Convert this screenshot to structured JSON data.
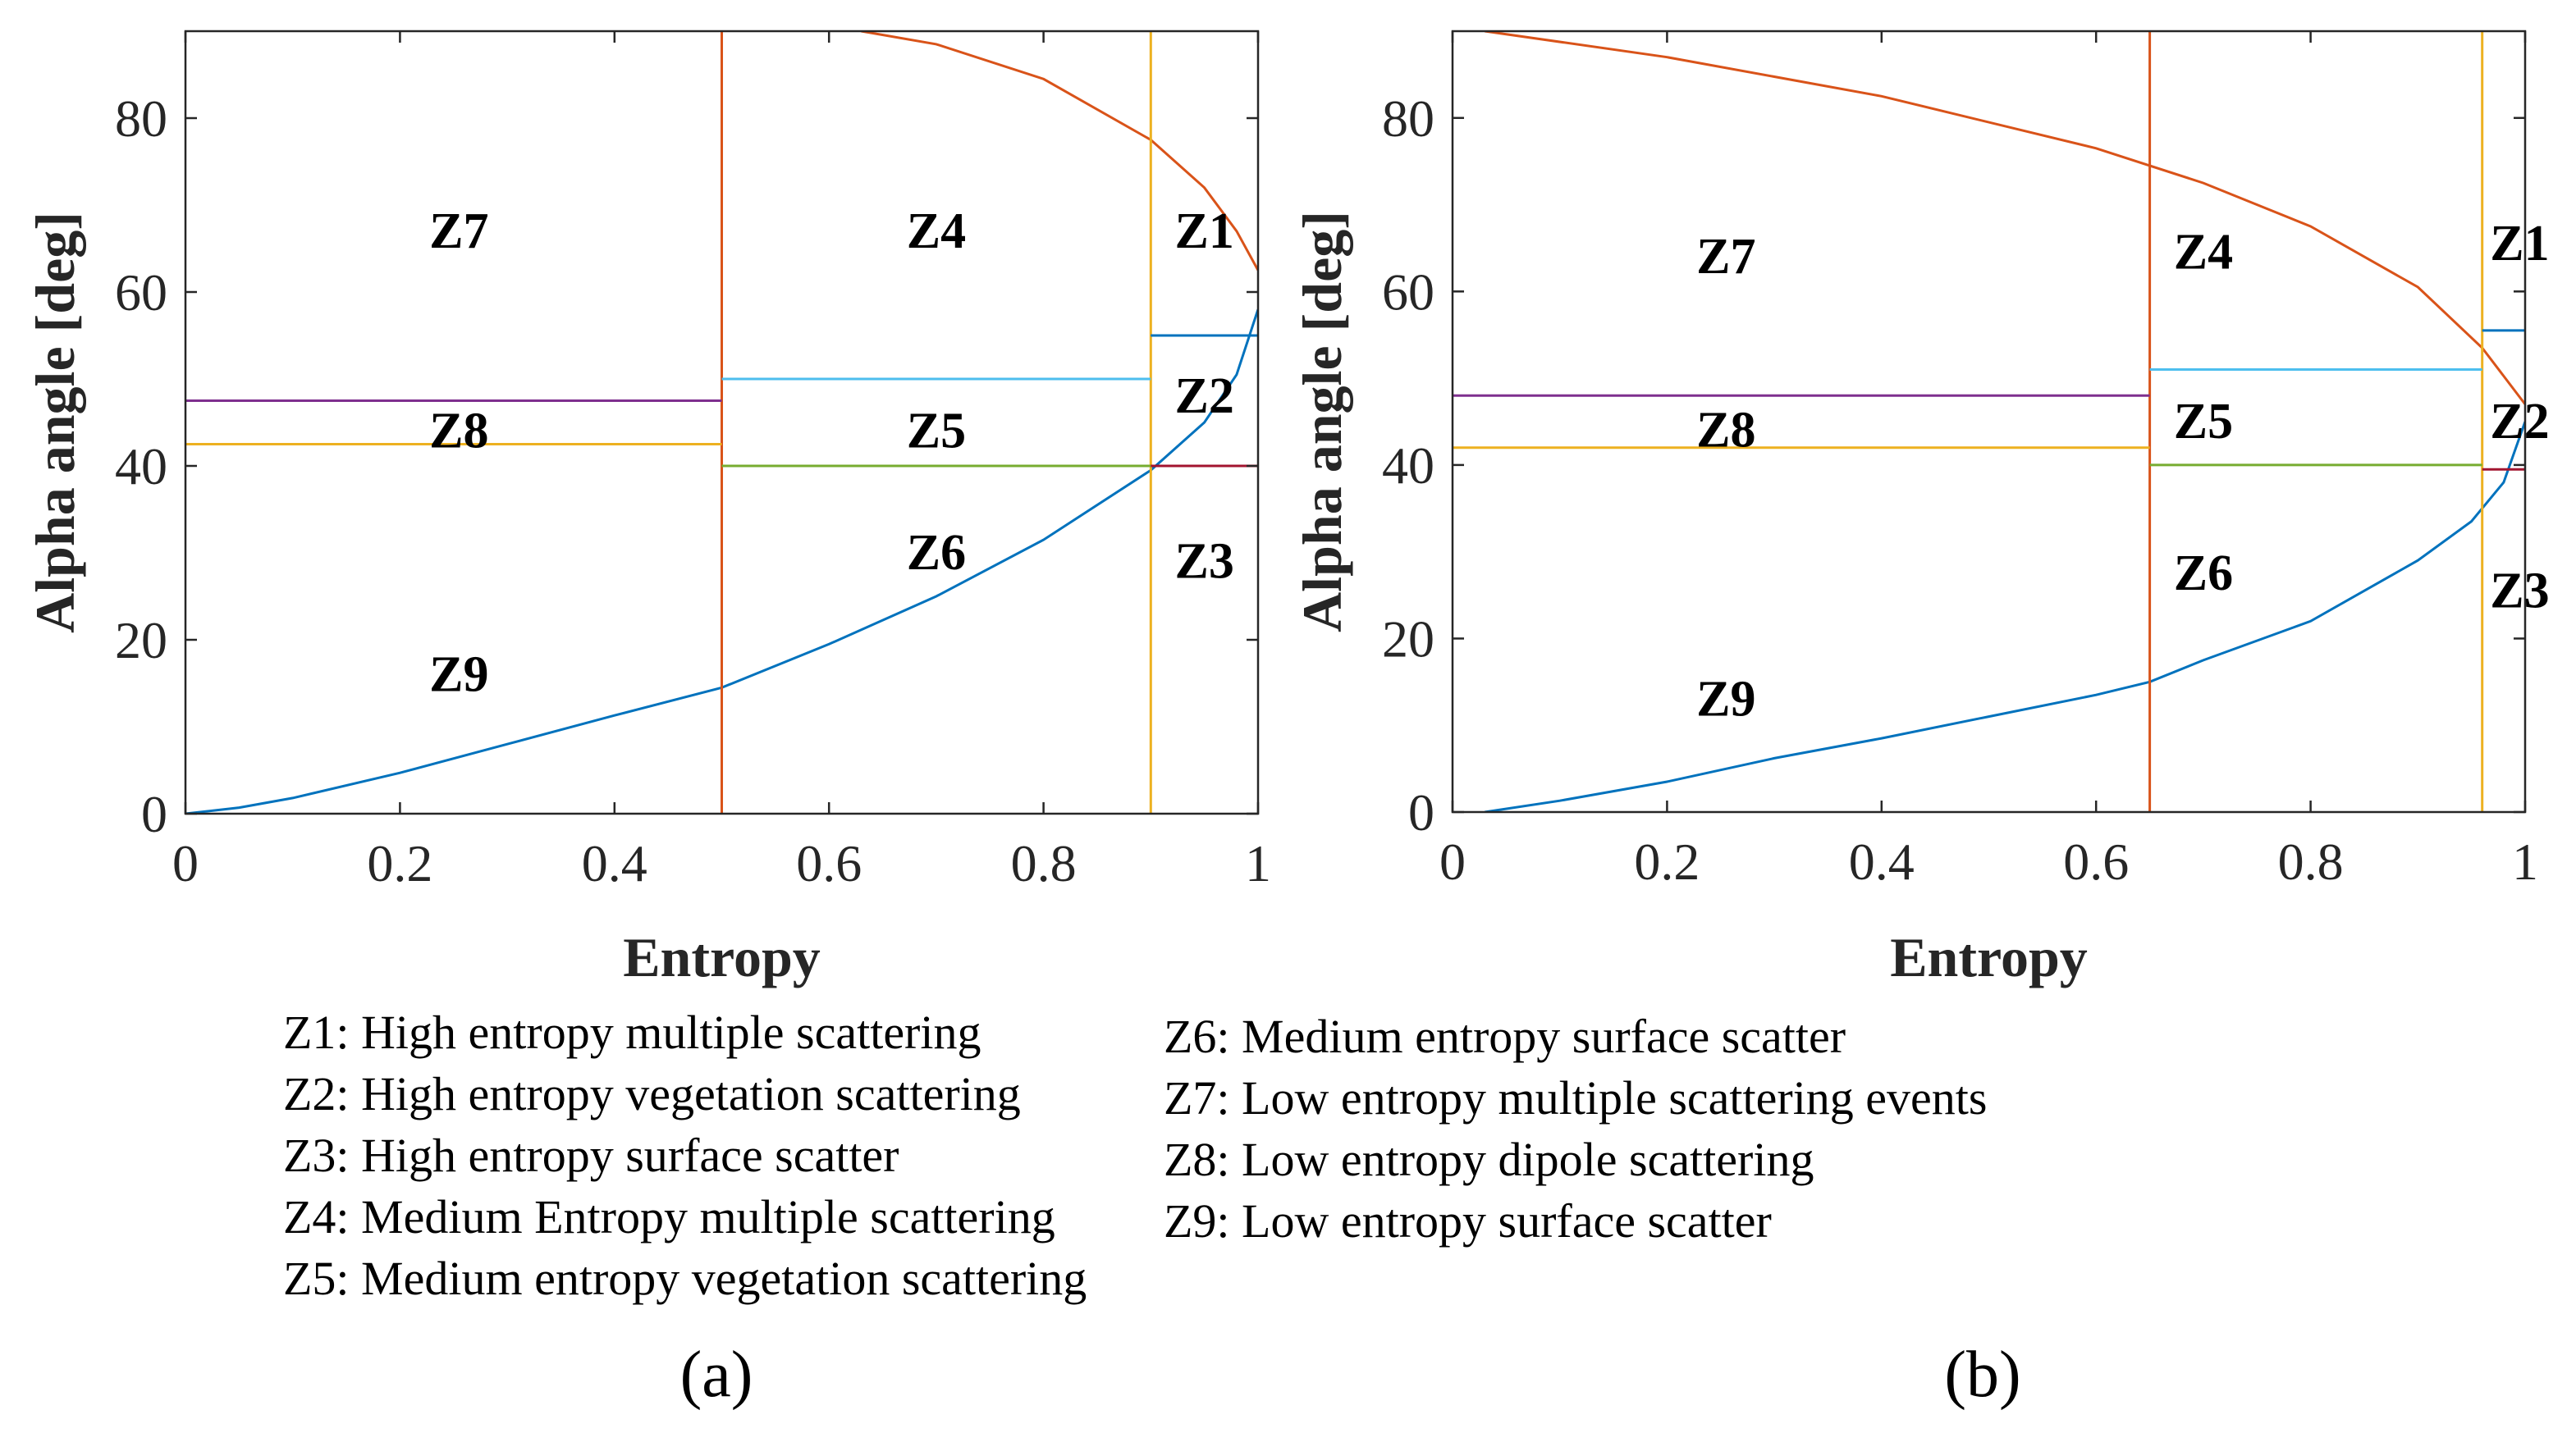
{
  "chart_data": [
    {
      "type": "line",
      "panel": "(a)",
      "xlabel": "Entropy",
      "ylabel": "Alpha angle [deg]",
      "xlim": [
        0,
        1
      ],
      "ylim": [
        0,
        90
      ],
      "xticks": [
        0,
        0.2,
        0.4,
        0.6,
        0.8,
        1
      ],
      "xtick_labels": [
        "0",
        "0.2",
        "0.4",
        "0.6",
        "0.8",
        "1"
      ],
      "yticks": [
        0,
        20,
        40,
        60,
        80
      ],
      "ytick_labels": [
        "0",
        "20",
        "40",
        "60",
        "80"
      ],
      "series": [
        {
          "name": "upper feasible boundary",
          "color": "#d95319",
          "x": [
            0.63,
            0.7,
            0.8,
            0.9,
            0.95,
            0.98,
            1.0
          ],
          "y": [
            90,
            88.5,
            84.5,
            77.5,
            72,
            67,
            62.5
          ]
        },
        {
          "name": "lower feasible boundary",
          "color": "#0072bd",
          "x": [
            0,
            0.05,
            0.1,
            0.2,
            0.3,
            0.4,
            0.5,
            0.6,
            0.7,
            0.8,
            0.9,
            0.95,
            0.98,
            1.0
          ],
          "y": [
            0,
            0.7,
            1.8,
            4.7,
            8,
            11.3,
            14.5,
            19.5,
            25,
            31.5,
            39.5,
            45,
            50.5,
            58
          ]
        },
        {
          "name": "H = 0.5",
          "color": "#d95319",
          "x": [
            0.5,
            0.5
          ],
          "y": [
            0,
            90
          ]
        },
        {
          "name": "H = 0.9",
          "color": "#edb120",
          "x": [
            0.9,
            0.9
          ],
          "y": [
            0,
            90
          ]
        },
        {
          "name": "alpha 47.5 (Z7/Z8)",
          "color": "#7e2f8e",
          "x": [
            0,
            0.5
          ],
          "y": [
            47.5,
            47.5
          ]
        },
        {
          "name": "alpha 42.5 (Z8/Z9)",
          "color": "#edb120",
          "x": [
            0,
            0.5
          ],
          "y": [
            42.5,
            42.5
          ]
        },
        {
          "name": "alpha 50 (Z4/Z5)",
          "color": "#4dbeee",
          "x": [
            0.5,
            0.9
          ],
          "y": [
            50,
            50
          ]
        },
        {
          "name": "alpha 40 (Z5/Z6)",
          "color": "#77ac30",
          "x": [
            0.5,
            0.9
          ],
          "y": [
            40,
            40
          ]
        },
        {
          "name": "alpha 55 (Z1/Z2)",
          "color": "#0072bd",
          "x": [
            0.9,
            1.0
          ],
          "y": [
            55,
            55
          ]
        },
        {
          "name": "alpha 40 (Z2/Z3)",
          "color": "#a2142f",
          "x": [
            0.9,
            1.0
          ],
          "y": [
            40,
            40
          ]
        }
      ],
      "annotations": [
        {
          "text": "Z7",
          "x": 0.255,
          "y": 67
        },
        {
          "text": "Z4",
          "x": 0.7,
          "y": 67
        },
        {
          "text": "Z1",
          "x": 0.95,
          "y": 67
        },
        {
          "text": "Z8",
          "x": 0.255,
          "y": 44
        },
        {
          "text": "Z5",
          "x": 0.7,
          "y": 44
        },
        {
          "text": "Z2",
          "x": 0.95,
          "y": 48
        },
        {
          "text": "Z6",
          "x": 0.7,
          "y": 30
        },
        {
          "text": "Z3",
          "x": 0.95,
          "y": 29
        },
        {
          "text": "Z9",
          "x": 0.255,
          "y": 16
        }
      ]
    },
    {
      "type": "line",
      "panel": "(b)",
      "xlabel": "Entropy",
      "ylabel": "Alpha angle [deg]",
      "xlim": [
        0,
        1
      ],
      "ylim": [
        0,
        90
      ],
      "xticks": [
        0,
        0.2,
        0.4,
        0.6,
        0.8,
        1
      ],
      "xtick_labels": [
        "0",
        "0.2",
        "0.4",
        "0.6",
        "0.8",
        "1"
      ],
      "yticks": [
        0,
        20,
        40,
        60,
        80
      ],
      "ytick_labels": [
        "0",
        "20",
        "40",
        "60",
        "80"
      ],
      "series": [
        {
          "name": "upper feasible boundary",
          "color": "#d95319",
          "x": [
            0.03,
            0.2,
            0.4,
            0.6,
            0.7,
            0.8,
            0.9,
            0.96,
            1.0
          ],
          "y": [
            90,
            87,
            82.5,
            76.5,
            72.5,
            67.5,
            60.5,
            53.5,
            47
          ]
        },
        {
          "name": "lower feasible boundary",
          "color": "#0072bd",
          "x": [
            0.03,
            0.1,
            0.2,
            0.3,
            0.4,
            0.5,
            0.6,
            0.65,
            0.7,
            0.8,
            0.9,
            0.95,
            0.98,
            1.0
          ],
          "y": [
            0,
            1.3,
            3.5,
            6.2,
            8.5,
            11,
            13.5,
            15,
            17.5,
            22,
            29,
            33.5,
            38,
            45
          ]
        },
        {
          "name": "H = 0.65",
          "color": "#d95319",
          "x": [
            0.65,
            0.65
          ],
          "y": [
            0,
            90
          ]
        },
        {
          "name": "H = 0.96",
          "color": "#edb120",
          "x": [
            0.96,
            0.96
          ],
          "y": [
            0,
            90
          ]
        },
        {
          "name": "alpha 48 (Z7/Z8)",
          "color": "#7e2f8e",
          "x": [
            0,
            0.65
          ],
          "y": [
            48,
            48
          ]
        },
        {
          "name": "alpha 42 (Z8/Z9)",
          "color": "#edb120",
          "x": [
            0,
            0.65
          ],
          "y": [
            42,
            42
          ]
        },
        {
          "name": "alpha 51 (Z4/Z5)",
          "color": "#4dbeee",
          "x": [
            0.65,
            0.96
          ],
          "y": [
            51,
            51
          ]
        },
        {
          "name": "alpha 40 (Z5/Z6)",
          "color": "#77ac30",
          "x": [
            0.65,
            0.96
          ],
          "y": [
            40,
            40
          ]
        },
        {
          "name": "alpha 55.5 (Z1/Z2)",
          "color": "#0072bd",
          "x": [
            0.96,
            1.0
          ],
          "y": [
            55.5,
            55.5
          ]
        },
        {
          "name": "alpha 39.5 (Z2/Z3)",
          "color": "#a2142f",
          "x": [
            0.96,
            1.0
          ],
          "y": [
            39.5,
            39.5
          ]
        }
      ],
      "annotations": [
        {
          "text": "Z7",
          "x": 0.255,
          "y": 64
        },
        {
          "text": "Z4",
          "x": 0.7,
          "y": 64.5
        },
        {
          "text": "Z1",
          "x": 0.995,
          "y": 65.5
        },
        {
          "text": "Z8",
          "x": 0.255,
          "y": 44
        },
        {
          "text": "Z5",
          "x": 0.7,
          "y": 45
        },
        {
          "text": "Z2",
          "x": 0.995,
          "y": 45
        },
        {
          "text": "Z6",
          "x": 0.7,
          "y": 27.5
        },
        {
          "text": "Z3",
          "x": 0.995,
          "y": 25.5
        },
        {
          "text": "Z9",
          "x": 0.255,
          "y": 13
        }
      ]
    }
  ],
  "legend": {
    "left": [
      "Z1: High entropy multiple scattering",
      "Z2: High entropy vegetation scattering",
      "Z3: High entropy surface scatter",
      "Z4: Medium Entropy multiple scattering",
      "Z5: Medium entropy vegetation scattering"
    ],
    "right": [
      "Z6: Medium entropy surface scatter",
      "Z7: Low entropy multiple scattering events",
      "Z8: Low entropy dipole scattering",
      "Z9: Low entropy surface scatter"
    ]
  },
  "panel_labels": [
    "(a)",
    "(b)"
  ]
}
